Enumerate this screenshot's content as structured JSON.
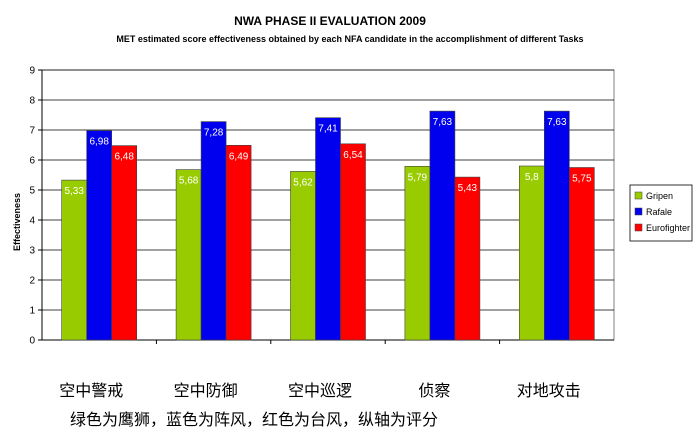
{
  "chart_data": {
    "type": "bar",
    "title": "NWA PHASE II EVALUATION 2009",
    "subtitle": "MET estimated score effectiveness obtained by each NFA candidate in the accomplishment of different Tasks",
    "ylabel": "Effectiveness",
    "xlabel": "",
    "ylim": [
      0,
      9
    ],
    "yticks": [
      "0",
      "1",
      "2",
      "3",
      "4",
      "5",
      "6",
      "7",
      "8",
      "9"
    ],
    "grid": true,
    "legend_position": "right",
    "categories": [
      "空中警戒",
      "空中防御",
      "空中巡逻",
      "侦察",
      "对地攻击"
    ],
    "series": [
      {
        "name": "Gripen",
        "color": "#99cc00",
        "values": [
          5.33,
          5.68,
          5.62,
          5.79,
          5.8
        ],
        "labels": [
          "5,33",
          "5,68",
          "5,62",
          "5,79",
          "5,8"
        ]
      },
      {
        "name": "Rafale",
        "color": "#0000ee",
        "values": [
          6.98,
          7.28,
          7.41,
          7.63,
          7.63
        ],
        "labels": [
          "6,98",
          "7,28",
          "7,41",
          "7,63",
          "7,63"
        ]
      },
      {
        "name": "Eurofighter",
        "color": "#ff0000",
        "values": [
          6.48,
          6.49,
          6.54,
          5.43,
          5.75
        ],
        "labels": [
          "6,48",
          "6,49",
          "6,54",
          "5,43",
          "5,75"
        ]
      }
    ],
    "caption": "绿色为鹰狮，蓝色为阵风，红色为台风，纵轴为评分"
  }
}
